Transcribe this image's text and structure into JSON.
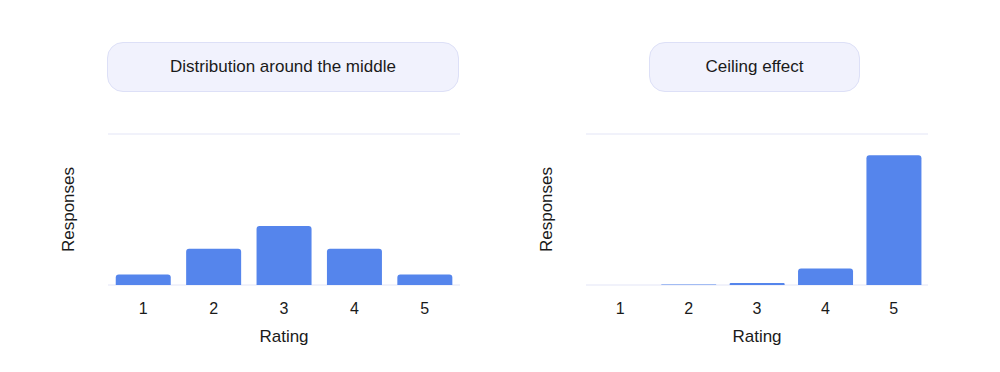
{
  "chart_data": [
    {
      "type": "bar",
      "title": "Distribution around the middle",
      "x_label": "Rating",
      "y_label": "Responses",
      "categories": [
        "1",
        "2",
        "3",
        "4",
        "5"
      ],
      "values": [
        0.35,
        1.2,
        1.95,
        1.2,
        0.35
      ],
      "color": "#5585ec",
      "ylim": [
        0,
        5
      ],
      "yticks": [
        0,
        1,
        2,
        3,
        4,
        5
      ],
      "grid": true,
      "tick_labels": "x"
    },
    {
      "type": "bar",
      "title": "Ceiling effect",
      "x_label": "Rating",
      "y_label": "Responses",
      "categories": [
        "1",
        "2",
        "3",
        "4",
        "5"
      ],
      "values": [
        0,
        0.02,
        0.07,
        0.55,
        4.3
      ],
      "color": "#5585ec",
      "ylim": [
        0,
        5
      ],
      "yticks": [
        0,
        1,
        2,
        3,
        4,
        5
      ],
      "grid": true,
      "tick_labels": "x"
    }
  ]
}
